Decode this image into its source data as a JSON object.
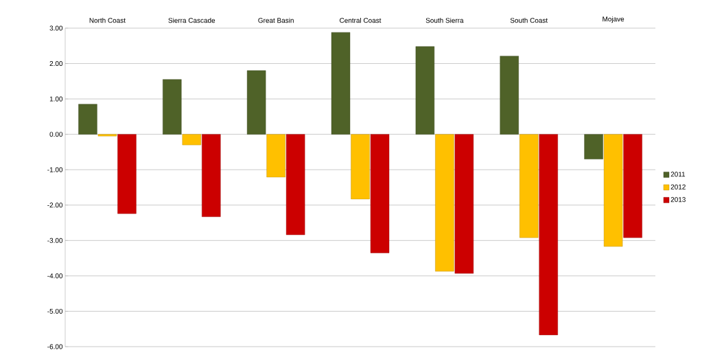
{
  "chart_data": {
    "type": "bar",
    "categories": [
      "North Coast",
      "Sierra Cascade",
      "Great Basin",
      "Central Coast",
      "South Sierra",
      "South Coast",
      "Mojave"
    ],
    "series": [
      {
        "name": "2011",
        "color": "#4f6228",
        "values": [
          0.85,
          1.55,
          1.8,
          2.88,
          2.48,
          2.21,
          -0.7
        ]
      },
      {
        "name": "2012",
        "color": "#ffc000",
        "values": [
          -0.05,
          -0.3,
          -1.21,
          -1.83,
          -3.87,
          -2.92,
          -3.17
        ]
      },
      {
        "name": "2013",
        "color": "#cc0000",
        "values": [
          -2.24,
          -2.33,
          -2.84,
          -3.35,
          -3.93,
          -5.67,
          -2.92
        ]
      }
    ],
    "ylim": [
      -6,
      3
    ],
    "yticks": [
      {
        "value": -6,
        "label": "-6.00"
      },
      {
        "value": -5,
        "label": "-5.00"
      },
      {
        "value": -4,
        "label": "-4.00"
      },
      {
        "value": -3,
        "label": "-3.00"
      },
      {
        "value": -2,
        "label": "-2.00"
      },
      {
        "value": -1,
        "label": "-1.00"
      },
      {
        "value": 0,
        "label": "0.00"
      },
      {
        "value": 1,
        "label": "1.00"
      },
      {
        "value": 2,
        "label": "2.00"
      },
      {
        "value": 3,
        "label": "3.00"
      }
    ],
    "grid": "y",
    "legend": "right"
  }
}
